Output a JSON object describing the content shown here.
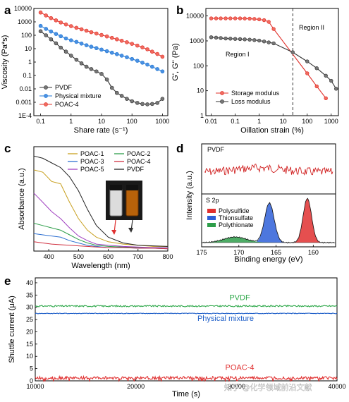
{
  "panel_labels": [
    "a",
    "b",
    "c",
    "d",
    "e"
  ],
  "watermark": "知乎 @化学领域前沿文献",
  "chart_data": [
    {
      "id": "a",
      "type": "line",
      "xlabel": "Share rate (s⁻¹)",
      "ylabel": "Viscosity (Pa*s)",
      "xscale": "log",
      "yscale": "log",
      "xlim": [
        0.06,
        1500
      ],
      "ylim": [
        0.0001,
        10000
      ],
      "xticks": [
        {
          "v": 0.1,
          "t": "0.1"
        },
        {
          "v": 1,
          "t": "1"
        },
        {
          "v": 10,
          "t": "10"
        },
        {
          "v": 100,
          "t": "100"
        },
        {
          "v": 1000,
          "t": "1000"
        }
      ],
      "yticks": [
        {
          "v": 10000,
          "t": "10000"
        },
        {
          "v": 1000,
          "t": "1000"
        },
        {
          "v": 100,
          "t": "100"
        },
        {
          "v": 10,
          "t": "10"
        },
        {
          "v": 1,
          "t": "1"
        },
        {
          "v": 0.1,
          "t": "0.1"
        },
        {
          "v": 0.01,
          "t": "0.01"
        },
        {
          "v": 0.001,
          "t": "0.001"
        },
        {
          "v": 0.0001,
          "t": "1E-4"
        }
      ],
      "legend_position": "bottom-left",
      "series": [
        {
          "name": "PVDF",
          "color": "#333333",
          "marker": "#777777",
          "points": [
            [
              0.1,
              200
            ],
            [
              0.15,
              100
            ],
            [
              0.22,
              50
            ],
            [
              0.32,
              25
            ],
            [
              0.46,
              12
            ],
            [
              0.68,
              6
            ],
            [
              1,
              3
            ],
            [
              1.5,
              1.5
            ],
            [
              2.2,
              0.8
            ],
            [
              3.2,
              0.45
            ],
            [
              4.6,
              0.3
            ],
            [
              6.8,
              0.2
            ],
            [
              10,
              0.13
            ],
            [
              15,
              0.05
            ],
            [
              22,
              0.012
            ],
            [
              32,
              0.005
            ],
            [
              46,
              0.003
            ],
            [
              68,
              0.0018
            ],
            [
              100,
              0.0012
            ],
            [
              150,
              0.0009
            ],
            [
              220,
              0.00075
            ],
            [
              320,
              0.0007
            ],
            [
              460,
              0.00075
            ],
            [
              680,
              0.0009
            ],
            [
              1000,
              0.0018
            ]
          ]
        },
        {
          "name": "Physical mixture",
          "color": "#1f77d4",
          "marker": "#4a90e2",
          "points": [
            [
              0.1,
              500
            ],
            [
              0.15,
              300
            ],
            [
              0.22,
              190
            ],
            [
              0.32,
              125
            ],
            [
              0.46,
              85
            ],
            [
              0.68,
              58
            ],
            [
              1,
              42
            ],
            [
              1.5,
              32
            ],
            [
              2.2,
              24
            ],
            [
              3.2,
              18
            ],
            [
              4.6,
              14
            ],
            [
              6.8,
              11
            ],
            [
              10,
              8.5
            ],
            [
              15,
              6.5
            ],
            [
              22,
              5
            ],
            [
              32,
              3.9
            ],
            [
              46,
              3
            ],
            [
              68,
              2.3
            ],
            [
              100,
              1.7
            ],
            [
              150,
              1.25
            ],
            [
              220,
              0.9
            ],
            [
              320,
              0.65
            ],
            [
              460,
              0.45
            ],
            [
              680,
              0.3
            ],
            [
              1000,
              0.2
            ]
          ]
        },
        {
          "name": "POAC-4",
          "color": "#e0302a",
          "marker": "#f06a5e",
          "points": [
            [
              0.1,
              5000
            ],
            [
              0.15,
              3000
            ],
            [
              0.22,
              1900
            ],
            [
              0.32,
              1300
            ],
            [
              0.46,
              900
            ],
            [
              0.68,
              640
            ],
            [
              1,
              480
            ],
            [
              1.5,
              360
            ],
            [
              2.2,
              280
            ],
            [
              3.2,
              220
            ],
            [
              4.6,
              170
            ],
            [
              6.8,
              135
            ],
            [
              10,
              105
            ],
            [
              15,
              82
            ],
            [
              22,
              64
            ],
            [
              32,
              50
            ],
            [
              46,
              39
            ],
            [
              68,
              30
            ],
            [
              100,
              23
            ],
            [
              150,
              17
            ],
            [
              220,
              12.5
            ],
            [
              320,
              9
            ],
            [
              460,
              6
            ],
            [
              680,
              4
            ],
            [
              1000,
              2.5
            ]
          ]
        }
      ]
    },
    {
      "id": "b",
      "type": "line",
      "xlabel": "Oillation strain (%)",
      "ylabel": "G', G'' (Pa)",
      "xscale": "log",
      "yscale": "log",
      "xlim": [
        0.006,
        2000
      ],
      "ylim": [
        1,
        20000
      ],
      "xticks": [
        {
          "v": 0.01,
          "t": "0.01"
        },
        {
          "v": 0.1,
          "t": "0.1"
        },
        {
          "v": 1,
          "t": "1"
        },
        {
          "v": 10,
          "t": "10"
        },
        {
          "v": 100,
          "t": "100"
        },
        {
          "v": 1000,
          "t": "1000"
        }
      ],
      "yticks": [
        {
          "v": 10000,
          "t": "10000"
        },
        {
          "v": 1000,
          "t": "1000"
        },
        {
          "v": 100,
          "t": "100"
        },
        {
          "v": 10,
          "t": "10"
        },
        {
          "v": 1,
          "t": "1"
        }
      ],
      "divider_x": 25,
      "annotations": [
        "Region I",
        "Region II"
      ],
      "legend_position": "bottom-center",
      "series": [
        {
          "name": "Storage modulus",
          "color": "#e0302a",
          "marker": "#f06a5e",
          "points": [
            [
              0.01,
              8000
            ],
            [
              0.016,
              8000
            ],
            [
              0.025,
              8000
            ],
            [
              0.04,
              8000
            ],
            [
              0.063,
              8000
            ],
            [
              0.1,
              8000
            ],
            [
              0.16,
              8000
            ],
            [
              0.25,
              7900
            ],
            [
              0.4,
              7800
            ],
            [
              0.63,
              7600
            ],
            [
              1,
              7300
            ],
            [
              1.6,
              6800
            ],
            [
              2.5,
              5800
            ],
            [
              4,
              3000
            ],
            [
              100,
              50
            ],
            [
              250,
              15
            ],
            [
              600,
              5
            ]
          ]
        },
        {
          "name": "Loss modulus",
          "color": "#333333",
          "marker": "#777777",
          "points": [
            [
              0.01,
              1400
            ],
            [
              0.016,
              1350
            ],
            [
              0.025,
              1300
            ],
            [
              0.04,
              1250
            ],
            [
              0.063,
              1230
            ],
            [
              0.1,
              1200
            ],
            [
              0.16,
              1180
            ],
            [
              0.25,
              1150
            ],
            [
              0.4,
              1120
            ],
            [
              0.63,
              1080
            ],
            [
              1,
              1030
            ],
            [
              1.6,
              950
            ],
            [
              2.5,
              870
            ],
            [
              4,
              800
            ],
            [
              25,
              350
            ],
            [
              100,
              150
            ],
            [
              250,
              80
            ],
            [
              600,
              40
            ],
            [
              1000,
              25
            ],
            [
              1600,
              12
            ]
          ]
        }
      ]
    },
    {
      "id": "c",
      "type": "line",
      "xlabel": "Wavelength (nm)",
      "ylabel": "Absorbance (a.u.)",
      "xlim": [
        350,
        800
      ],
      "xticks": [
        {
          "v": 400,
          "t": "400"
        },
        {
          "v": 500,
          "t": "500"
        },
        {
          "v": 600,
          "t": "600"
        },
        {
          "v": 700,
          "t": "700"
        },
        {
          "v": 800,
          "t": "800"
        }
      ],
      "legend_position": "top-right",
      "series": [
        {
          "name": "POAC-1",
          "color": "#c8a020",
          "points": [
            [
              350,
              0.7
            ],
            [
              380,
              0.68
            ],
            [
              410,
              0.6
            ],
            [
              440,
              0.58
            ],
            [
              470,
              0.42
            ],
            [
              500,
              0.28
            ],
            [
              530,
              0.18
            ],
            [
              560,
              0.12
            ],
            [
              600,
              0.08
            ],
            [
              650,
              0.06
            ],
            [
              700,
              0.05
            ],
            [
              750,
              0.04
            ],
            [
              800,
              0.04
            ]
          ]
        },
        {
          "name": "POAC-2",
          "color": "#2e9e4a",
          "points": [
            [
              350,
              0.24
            ],
            [
              380,
              0.22
            ],
            [
              410,
              0.2
            ],
            [
              440,
              0.18
            ],
            [
              470,
              0.14
            ],
            [
              500,
              0.1
            ],
            [
              530,
              0.07
            ],
            [
              560,
              0.05
            ],
            [
              600,
              0.04
            ],
            [
              650,
              0.035
            ],
            [
              700,
              0.03
            ],
            [
              750,
              0.03
            ],
            [
              800,
              0.03
            ]
          ]
        },
        {
          "name": "POAC-3",
          "color": "#2e6fd1",
          "points": [
            [
              350,
              0.15
            ],
            [
              380,
              0.14
            ],
            [
              410,
              0.13
            ],
            [
              440,
              0.12
            ],
            [
              470,
              0.09
            ],
            [
              500,
              0.07
            ],
            [
              530,
              0.05
            ],
            [
              560,
              0.04
            ],
            [
              600,
              0.03
            ],
            [
              650,
              0.03
            ],
            [
              700,
              0.025
            ],
            [
              750,
              0.025
            ],
            [
              800,
              0.02
            ]
          ]
        },
        {
          "name": "POAC-4",
          "color": "#d03040",
          "points": [
            [
              350,
              0.08
            ],
            [
              380,
              0.07
            ],
            [
              410,
              0.06
            ],
            [
              440,
              0.055
            ],
            [
              470,
              0.05
            ],
            [
              500,
              0.045
            ],
            [
              530,
              0.04
            ],
            [
              560,
              0.035
            ],
            [
              600,
              0.03
            ],
            [
              650,
              0.03
            ],
            [
              700,
              0.025
            ],
            [
              750,
              0.025
            ],
            [
              800,
              0.02
            ]
          ]
        },
        {
          "name": "POAC-5",
          "color": "#a040c0",
          "points": [
            [
              350,
              0.5
            ],
            [
              380,
              0.42
            ],
            [
              410,
              0.34
            ],
            [
              440,
              0.28
            ],
            [
              470,
              0.2
            ],
            [
              500,
              0.13
            ],
            [
              530,
              0.09
            ],
            [
              560,
              0.06
            ],
            [
              600,
              0.05
            ],
            [
              650,
              0.04
            ],
            [
              700,
              0.035
            ],
            [
              750,
              0.03
            ],
            [
              800,
              0.03
            ]
          ]
        },
        {
          "name": "PVDF",
          "color": "#222222",
          "points": [
            [
              350,
              0.82
            ],
            [
              380,
              0.8
            ],
            [
              410,
              0.76
            ],
            [
              440,
              0.72
            ],
            [
              470,
              0.64
            ],
            [
              500,
              0.52
            ],
            [
              530,
              0.36
            ],
            [
              560,
              0.22
            ],
            [
              600,
              0.12
            ],
            [
              650,
              0.07
            ],
            [
              700,
              0.05
            ],
            [
              750,
              0.045
            ],
            [
              800,
              0.04
            ]
          ]
        }
      ]
    },
    {
      "id": "d",
      "type": "line",
      "xlabel": "Binding energy (eV)",
      "ylabel": "Intensity (a.u.)",
      "xlim": [
        175,
        157
      ],
      "xticks": [
        {
          "v": 175,
          "t": "175"
        },
        {
          "v": 170,
          "t": "170"
        },
        {
          "v": 165,
          "t": "165"
        },
        {
          "v": 160,
          "t": "160"
        }
      ],
      "top_label": "PVDF",
      "bottom_label": "S 2p",
      "legend_position": "top-left",
      "series": [
        {
          "name": "Polysulfide",
          "color": "#e03030",
          "center": 160.8,
          "height": 0.95,
          "width": 0.8
        },
        {
          "name": "Thionsulfate",
          "color": "#2e5fd8",
          "center": 165.9,
          "height": 0.85,
          "width": 0.9
        },
        {
          "name": "Polythionate",
          "color": "#2e9e4a",
          "center": 170.5,
          "height": 0.12,
          "width": 2.2
        }
      ]
    },
    {
      "id": "e",
      "type": "line",
      "xlabel": "Time (s)",
      "ylabel": "Shuttle current (μA)",
      "xlim": [
        10000,
        40000
      ],
      "ylim": [
        0,
        42
      ],
      "xticks": [
        {
          "v": 10000,
          "t": "10000"
        },
        {
          "v": 20000,
          "t": "20000"
        },
        {
          "v": 30000,
          "t": "30000"
        },
        {
          "v": 40000,
          "t": "40000"
        }
      ],
      "yticks": [
        {
          "v": 0,
          "t": "0"
        },
        {
          "v": 5,
          "t": "5"
        },
        {
          "v": 10,
          "t": "10"
        },
        {
          "v": 15,
          "t": "15"
        },
        {
          "v": 20,
          "t": "20"
        },
        {
          "v": 25,
          "t": "25"
        },
        {
          "v": 30,
          "t": "30"
        },
        {
          "v": 35,
          "t": "35"
        },
        {
          "v": 40,
          "t": "40"
        }
      ],
      "series": [
        {
          "name": "PVDF",
          "color": "#2ea84a",
          "level": 30.5,
          "noise": 0.3
        },
        {
          "name": "Physical mixture",
          "color": "#1f5fc8",
          "level": 27.5,
          "noise": 0.15
        },
        {
          "name": "POAC-4",
          "color": "#e03030",
          "level": 1.2,
          "noise": 0.6
        }
      ]
    }
  ]
}
